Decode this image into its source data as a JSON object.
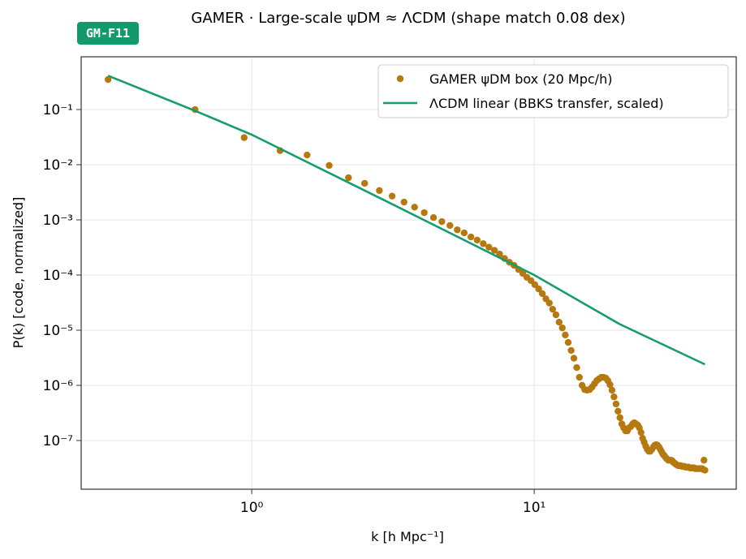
{
  "chart_data": {
    "type": "scatter",
    "badge": "GM-F11",
    "title": "GAMER · Large-scale ψDM ≈ ΛCDM  (shape match 0.08 dex)",
    "xlabel": "k [h Mpc⁻¹]",
    "ylabel": "P(k) [code, normalized]",
    "xscale": "log",
    "yscale": "log",
    "grid": true,
    "legend": "upper right",
    "xlim": [
      0.249,
      51.9
    ],
    "ylim": [
      1.31e-08,
      0.904
    ],
    "xticks": [
      {
        "value": 1,
        "label": "10⁰"
      },
      {
        "value": 10,
        "label": "10¹"
      }
    ],
    "yticks": [
      {
        "value": 1e-07,
        "label": "10⁻⁷"
      },
      {
        "value": 1e-06,
        "label": "10⁻⁶"
      },
      {
        "value": 1e-05,
        "label": "10⁻⁵"
      },
      {
        "value": 0.0001,
        "label": "10⁻⁴"
      },
      {
        "value": 0.001,
        "label": "10⁻³"
      },
      {
        "value": 0.01,
        "label": "10⁻²"
      },
      {
        "value": 0.1,
        "label": "10⁻¹"
      }
    ],
    "series": [
      {
        "name": "GAMER ψDM box (20 Mpc/h)",
        "type": "scatter",
        "color": "#b5790f",
        "x": [
          0.31,
          0.63,
          0.94,
          1.26,
          1.57,
          1.88,
          2.2,
          2.51,
          2.83,
          3.14,
          3.46,
          3.77,
          4.08,
          4.4,
          4.71,
          5.03,
          5.34,
          5.65,
          5.97,
          6.28,
          6.6,
          6.91,
          7.23,
          7.54,
          7.85,
          8.17,
          8.48,
          8.8,
          9.11,
          9.42,
          9.74,
          10.05,
          10.37,
          10.68,
          11.0,
          11.31,
          11.62,
          11.94,
          12.25,
          12.57,
          12.88,
          13.19,
          13.51,
          13.82,
          14.14,
          14.45,
          14.77,
          15.08,
          15.39,
          15.71,
          16.02,
          16.34,
          16.65,
          16.96,
          17.28,
          17.59,
          17.91,
          18.22,
          18.54,
          18.85,
          19.16,
          19.48,
          19.79,
          20.11,
          20.42,
          20.73,
          21.05,
          21.36,
          21.68,
          21.99,
          22.31,
          22.62,
          22.93,
          23.25,
          23.56,
          23.88,
          24.19,
          24.5,
          24.82,
          25.13,
          25.45,
          25.76,
          26.08,
          26.39,
          26.7,
          27.02,
          27.33,
          27.65,
          27.96,
          28.27,
          28.59,
          28.9,
          29.22,
          29.53,
          29.85,
          30.16,
          30.47,
          30.79,
          31.1,
          31.42,
          31.73,
          32.04,
          32.36,
          32.67,
          32.99,
          33.3,
          33.62,
          33.93,
          34.24,
          34.56,
          34.87,
          35.19,
          35.5,
          35.81,
          36.13,
          36.44,
          36.76,
          37.07,
          37.38,
          37.7,
          38.01,
          38.33,
          38.64,
          38.96,
          39.27,
          39.58,
          39.9,
          40.21
        ],
        "values": [
          0.35,
          0.1,
          0.031,
          0.018,
          0.015,
          0.0097,
          0.0058,
          0.0046,
          0.0034,
          0.0027,
          0.0021,
          0.0017,
          0.00135,
          0.0011,
          0.00093,
          0.00079,
          0.00066,
          0.00058,
          0.00049,
          0.00043,
          0.00037,
          0.00032,
          0.00028,
          0.00024,
          0.0002,
          0.00017,
          0.00015,
          0.000126,
          0.000107,
          9.1e-05,
          7.9e-05,
          6.7e-05,
          5.6e-05,
          4.6e-05,
          3.7e-05,
          3.1e-05,
          2.4e-05,
          1.9e-05,
          1.4e-05,
          1.1e-05,
          8.2e-06,
          6e-06,
          4.3e-06,
          3.1e-06,
          2.1e-06,
          1.4e-06,
          1e-06,
          8.4e-07,
          8.2e-07,
          8.4e-07,
          9.3e-07,
          1.07e-06,
          1.22e-06,
          1.31e-06,
          1.4e-06,
          1.4e-06,
          1.36e-06,
          1.22e-06,
          1.03e-06,
          8.2e-07,
          6.2e-07,
          4.6e-07,
          3.4e-07,
          2.6e-07,
          2e-07,
          1.7e-07,
          1.5e-07,
          1.5e-07,
          1.7e-07,
          1.8e-07,
          2e-07,
          2.1e-07,
          2e-07,
          1.9e-07,
          1.7e-07,
          1.4e-07,
          1.1e-07,
          9.3e-08,
          7.9e-08,
          6.9e-08,
          6.4e-08,
          6.4e-08,
          6.9e-08,
          7.6e-08,
          8.2e-08,
          8.4e-08,
          8.2e-08,
          7.6e-08,
          6.9e-08,
          6.2e-08,
          5.6e-08,
          5.3e-08,
          4.9e-08,
          4.6e-08,
          4.4e-08,
          4.4e-08,
          4.4e-08,
          4.3e-08,
          4e-08,
          3.9e-08,
          3.7e-08,
          3.6e-08,
          3.5e-08,
          3.5e-08,
          3.5e-08,
          3.4e-08,
          3.4e-08,
          3.4e-08,
          3.3e-08,
          3.3e-08,
          3.3e-08,
          3.3e-08,
          3.2e-08,
          3.2e-08,
          3.2e-08,
          3.2e-08,
          3.2e-08,
          3.1e-08,
          3.1e-08,
          3.1e-08,
          3.1e-08,
          3.1e-08,
          3.1e-08,
          3.1e-08,
          3.1e-08,
          3e-08,
          4.4e-08,
          2.9e-08
        ]
      },
      {
        "name": "ΛCDM linear (BBKS transfer, scaled)",
        "type": "line",
        "color": "#179c6e",
        "x": [
          0.31,
          0.63,
          1,
          3.16,
          10,
          20,
          40.21
        ],
        "values": [
          0.41,
          0.095,
          0.035,
          0.0019,
          0.0001,
          1.3e-05,
          2.4e-06
        ]
      }
    ]
  }
}
